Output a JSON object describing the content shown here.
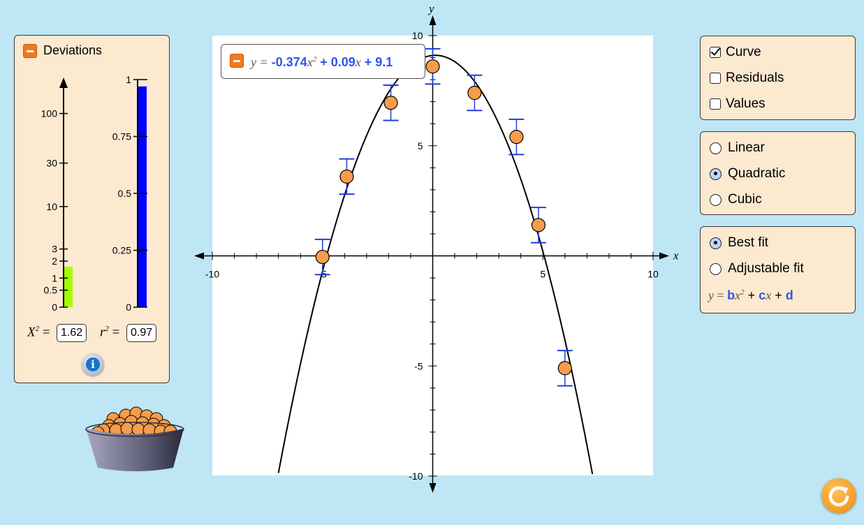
{
  "deviations_panel": {
    "title": "Deviations",
    "chi_meter": {
      "tick_labels": [
        "100",
        "30",
        "10",
        "3",
        "2",
        "1",
        "0.5",
        "0"
      ],
      "value": 1.62,
      "bar_color": "#a3ff00"
    },
    "r2_meter": {
      "tick_labels": [
        "1",
        "0.75",
        "0.5",
        "0.25",
        "0"
      ],
      "value": 0.97,
      "bar_color": "#0000ff"
    },
    "chi_label": "X",
    "chi_sup": "2",
    "chi_eq": "=",
    "chi_value": "1.62",
    "r2_label": "r",
    "r2_sup": "2",
    "r2_eq": "=",
    "r2_value": "0.97",
    "info_icon_glyph": "i"
  },
  "equation": {
    "lhs": "y =",
    "a": "-0.374",
    "x1": "x",
    "sup": "2",
    "plus1": " + ",
    "b": "0.09",
    "x2": "x",
    "plus2": " + ",
    "c": "9.1"
  },
  "chart_data": {
    "type": "scatter",
    "xlabel": "x",
    "ylabel": "y",
    "xlim": [
      -10,
      10
    ],
    "ylim": [
      -10,
      10
    ],
    "x_tick_labels": [
      "-10",
      "-5",
      "5",
      "10"
    ],
    "y_tick_labels": [
      "10",
      "5",
      "-5",
      "-10"
    ],
    "points": [
      {
        "x": -5.0,
        "y": -0.05,
        "err": 0.8
      },
      {
        "x": -3.9,
        "y": 3.6,
        "err": 0.8
      },
      {
        "x": -1.9,
        "y": 6.95,
        "err": 0.8
      },
      {
        "x": 0.0,
        "y": 8.6,
        "err": 0.8
      },
      {
        "x": 1.9,
        "y": 7.4,
        "err": 0.8
      },
      {
        "x": 3.8,
        "y": 5.4,
        "err": 0.8
      },
      {
        "x": 4.8,
        "y": 1.4,
        "err": 0.8
      },
      {
        "x": 6.0,
        "y": -5.1,
        "err": 0.8
      }
    ],
    "fit": {
      "a": -0.374,
      "b": 0.09,
      "c": 9.1
    },
    "point_color": "#f79c4a",
    "errorbar_color": "#1f3fd9",
    "curve_color": "#000000"
  },
  "options": {
    "curve": "Curve",
    "residuals": "Residuals",
    "values": "Values",
    "linear": "Linear",
    "quadratic": "Quadratic",
    "cubic": "Cubic",
    "best_fit": "Best fit",
    "adjustable_fit": "Adjustable fit"
  },
  "fit_equation": {
    "y": "y",
    "eq": " = ",
    "b": "b",
    "x1": "x",
    "sup": "2",
    "plus1": " + ",
    "c": "c",
    "x2": "x",
    "plus2": " + ",
    "d": "d"
  },
  "reset_icon": "reset-icon"
}
